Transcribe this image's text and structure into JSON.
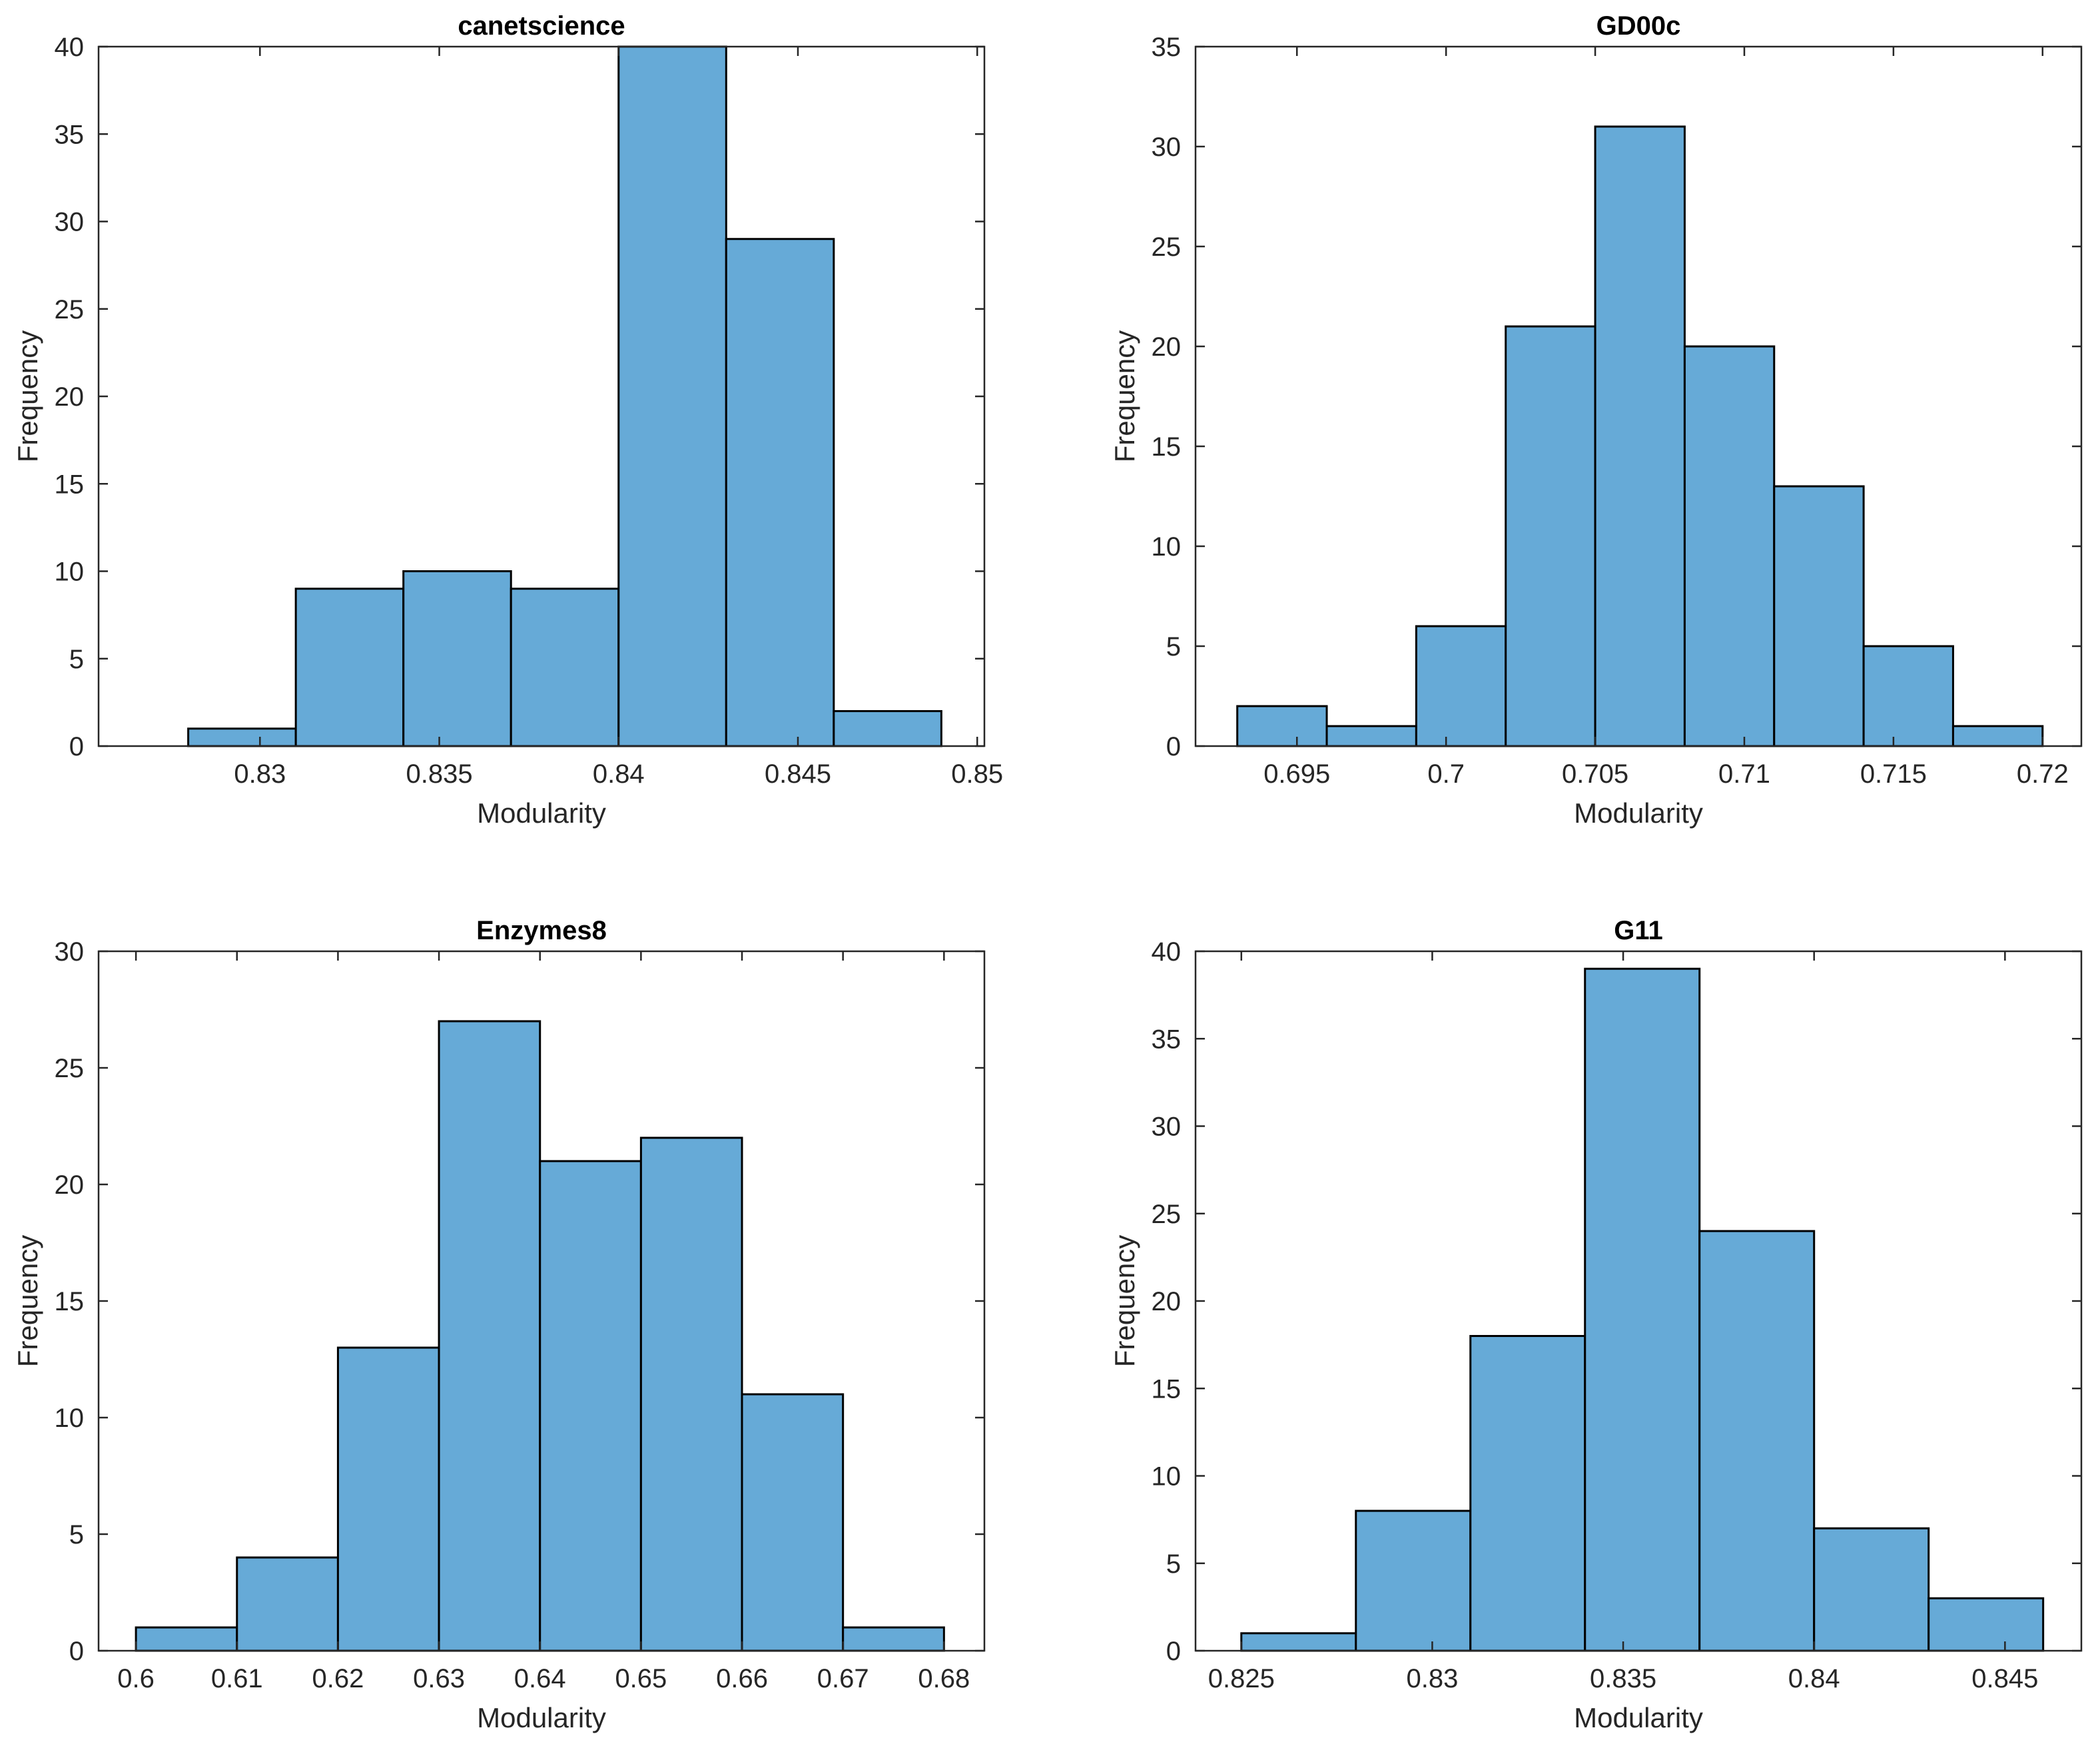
{
  "figure": {
    "bar_color": "#66aad7",
    "edge_color": "#000000"
  },
  "chart_data": [
    {
      "type": "bar",
      "title": "canetscience",
      "xlabel": "Modularity",
      "ylabel": "Frequency",
      "bin_edges": [
        0.828,
        0.831,
        0.834,
        0.837,
        0.84,
        0.843,
        0.846,
        0.849
      ],
      "values": [
        1,
        9,
        10,
        9,
        40,
        29,
        2
      ],
      "xlim": [
        0.8255,
        0.8502
      ],
      "ylim": [
        0,
        40
      ],
      "xticks": [
        0.83,
        0.835,
        0.84,
        0.845,
        0.85
      ],
      "xtick_labels": [
        "0.83",
        "0.835",
        "0.84",
        "0.845",
        "0.85"
      ],
      "yticks": [
        0,
        5,
        10,
        15,
        20,
        25,
        30,
        35,
        40
      ],
      "ytick_labels": [
        "0",
        "5",
        "10",
        "15",
        "20",
        "25",
        "30",
        "35",
        "40"
      ],
      "grid": false
    },
    {
      "type": "bar",
      "title": "GD00c",
      "xlabel": "Modularity",
      "ylabel": "Frequency",
      "bin_edges": [
        0.693,
        0.696,
        0.699,
        0.702,
        0.705,
        0.708,
        0.711,
        0.714,
        0.717,
        0.72
      ],
      "values": [
        2,
        1,
        6,
        21,
        31,
        20,
        13,
        5,
        1
      ],
      "xlim": [
        0.6916,
        0.7213
      ],
      "ylim": [
        0,
        35
      ],
      "xticks": [
        0.695,
        0.7,
        0.705,
        0.71,
        0.715,
        0.72
      ],
      "xtick_labels": [
        "0.695",
        "0.7",
        "0.705",
        "0.71",
        "0.715",
        "0.72"
      ],
      "yticks": [
        0,
        5,
        10,
        15,
        20,
        25,
        30,
        35
      ],
      "ytick_labels": [
        "0",
        "5",
        "10",
        "15",
        "20",
        "25",
        "30",
        "35"
      ],
      "grid": false
    },
    {
      "type": "bar",
      "title": "Enzymes8",
      "xlabel": "Modularity",
      "ylabel": "Frequency",
      "bin_edges": [
        0.6,
        0.61,
        0.62,
        0.63,
        0.64,
        0.65,
        0.66,
        0.67,
        0.68
      ],
      "values": [
        1,
        4,
        13,
        27,
        21,
        22,
        11,
        1
      ],
      "xlim": [
        0.5963,
        0.684
      ],
      "ylim": [
        0,
        30
      ],
      "xticks": [
        0.6,
        0.61,
        0.62,
        0.63,
        0.64,
        0.65,
        0.66,
        0.67,
        0.68
      ],
      "xtick_labels": [
        "0.6",
        "0.61",
        "0.62",
        "0.63",
        "0.64",
        "0.65",
        "0.66",
        "0.67",
        "0.68"
      ],
      "yticks": [
        0,
        5,
        10,
        15,
        20,
        25,
        30
      ],
      "ytick_labels": [
        "0",
        "5",
        "10",
        "15",
        "20",
        "25",
        "30"
      ],
      "grid": false
    },
    {
      "type": "bar",
      "title": "G11",
      "xlabel": "Modularity",
      "ylabel": "Frequency",
      "bin_edges": [
        0.825,
        0.828,
        0.831,
        0.834,
        0.837,
        0.84,
        0.843,
        0.846
      ],
      "values": [
        1,
        8,
        18,
        39,
        24,
        7,
        3
      ],
      "xlim": [
        0.8238,
        0.847
      ],
      "ylim": [
        0,
        40
      ],
      "xticks": [
        0.825,
        0.83,
        0.835,
        0.84,
        0.845
      ],
      "xtick_labels": [
        "0.825",
        "0.83",
        "0.835",
        "0.84",
        "0.845"
      ],
      "yticks": [
        0,
        5,
        10,
        15,
        20,
        25,
        30,
        35,
        40
      ],
      "ytick_labels": [
        "0",
        "5",
        "10",
        "15",
        "20",
        "25",
        "30",
        "35",
        "40"
      ],
      "grid": false
    }
  ]
}
